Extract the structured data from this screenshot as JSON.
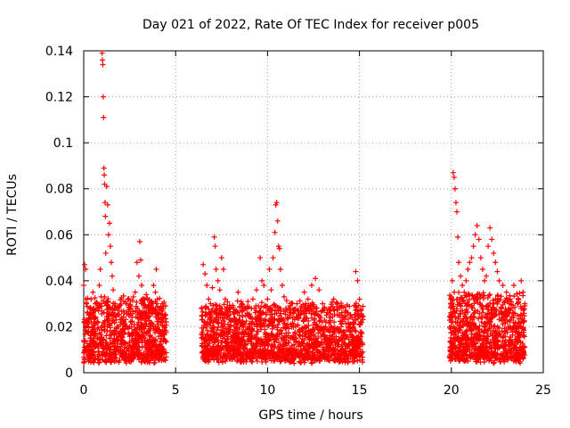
{
  "chart_data": {
    "type": "scatter",
    "title": "Day 021 of 2022, Rate Of TEC Index for receiver p005",
    "xlabel": "GPS time / hours",
    "ylabel": "ROTI / TECUs",
    "xlim": [
      0,
      25
    ],
    "ylim": [
      0,
      0.14
    ],
    "x_ticks": [
      0,
      5,
      10,
      15,
      20,
      25
    ],
    "x_tick_labels": [
      "0",
      "5",
      "10",
      "15",
      "20",
      "25"
    ],
    "y_ticks": [
      0,
      0.02,
      0.04,
      0.06,
      0.08,
      0.1,
      0.12,
      0.14
    ],
    "y_tick_labels": [
      "0",
      "0.02",
      "0.04",
      "0.06",
      "0.08",
      "0.1",
      "0.12",
      "0.14"
    ],
    "grid": true,
    "marker": "+",
    "series": [
      {
        "name": "ROTI",
        "color": "#ff0000",
        "points": [
          [
            0.0,
            0.038
          ],
          [
            0.05,
            0.047
          ],
          [
            0.1,
            0.045
          ],
          [
            0.15,
            0.03
          ],
          [
            0.2,
            0.022
          ],
          [
            0.25,
            0.018
          ],
          [
            0.3,
            0.025
          ],
          [
            0.35,
            0.015
          ],
          [
            0.4,
            0.032
          ],
          [
            0.45,
            0.02
          ],
          [
            0.5,
            0.035
          ],
          [
            0.55,
            0.028
          ],
          [
            0.6,
            0.016
          ],
          [
            0.65,
            0.024
          ],
          [
            0.7,
            0.03
          ],
          [
            0.75,
            0.019
          ],
          [
            0.8,
            0.027
          ],
          [
            0.85,
            0.038
          ],
          [
            0.9,
            0.045
          ],
          [
            0.95,
            0.033
          ],
          [
            1.0,
            0.139
          ],
          [
            1.02,
            0.136
          ],
          [
            1.04,
            0.134
          ],
          [
            1.06,
            0.12
          ],
          [
            1.08,
            0.111
          ],
          [
            1.1,
            0.089
          ],
          [
            1.12,
            0.086
          ],
          [
            1.14,
            0.082
          ],
          [
            1.16,
            0.074
          ],
          [
            1.18,
            0.068
          ],
          [
            1.2,
            0.052
          ],
          [
            1.25,
            0.081
          ],
          [
            1.3,
            0.073
          ],
          [
            1.35,
            0.06
          ],
          [
            1.4,
            0.065
          ],
          [
            1.45,
            0.055
          ],
          [
            1.5,
            0.048
          ],
          [
            1.55,
            0.042
          ],
          [
            1.6,
            0.036
          ],
          [
            1.7,
            0.03
          ],
          [
            1.8,
            0.025
          ],
          [
            1.9,
            0.02
          ],
          [
            2.0,
            0.022
          ],
          [
            2.1,
            0.018
          ],
          [
            2.2,
            0.026
          ],
          [
            2.3,
            0.03
          ],
          [
            2.4,
            0.032
          ],
          [
            2.5,
            0.028
          ],
          [
            2.6,
            0.02
          ],
          [
            2.7,
            0.033
          ],
          [
            2.8,
            0.035
          ],
          [
            2.9,
            0.048
          ],
          [
            3.0,
            0.042
          ],
          [
            3.05,
            0.057
          ],
          [
            3.1,
            0.049
          ],
          [
            3.15,
            0.038
          ],
          [
            3.2,
            0.03
          ],
          [
            3.3,
            0.025
          ],
          [
            3.4,
            0.034
          ],
          [
            3.5,
            0.028
          ],
          [
            3.6,
            0.02
          ],
          [
            3.7,
            0.031
          ],
          [
            3.8,
            0.038
          ],
          [
            3.9,
            0.035
          ],
          [
            3.95,
            0.045
          ],
          [
            4.0,
            0.032
          ],
          [
            4.1,
            0.028
          ],
          [
            4.2,
            0.022
          ],
          [
            4.3,
            0.018
          ],
          [
            4.4,
            0.025
          ],
          [
            6.5,
            0.047
          ],
          [
            6.6,
            0.043
          ],
          [
            6.7,
            0.038
          ],
          [
            6.8,
            0.032
          ],
          [
            6.9,
            0.03
          ],
          [
            7.0,
            0.037
          ],
          [
            7.1,
            0.059
          ],
          [
            7.15,
            0.055
          ],
          [
            7.2,
            0.045
          ],
          [
            7.3,
            0.04
          ],
          [
            7.4,
            0.036
          ],
          [
            7.5,
            0.05
          ],
          [
            7.6,
            0.045
          ],
          [
            7.7,
            0.032
          ],
          [
            7.8,
            0.028
          ],
          [
            7.9,
            0.025
          ],
          [
            8.0,
            0.022
          ],
          [
            8.2,
            0.026
          ],
          [
            8.4,
            0.035
          ],
          [
            8.6,
            0.03
          ],
          [
            8.8,
            0.025
          ],
          [
            9.0,
            0.02
          ],
          [
            9.2,
            0.032
          ],
          [
            9.4,
            0.036
          ],
          [
            9.5,
            0.029
          ],
          [
            9.6,
            0.05
          ],
          [
            9.7,
            0.04
          ],
          [
            9.8,
            0.038
          ],
          [
            10.0,
            0.032
          ],
          [
            10.1,
            0.045
          ],
          [
            10.2,
            0.036
          ],
          [
            10.3,
            0.05
          ],
          [
            10.4,
            0.061
          ],
          [
            10.45,
            0.073
          ],
          [
            10.5,
            0.074
          ],
          [
            10.55,
            0.066
          ],
          [
            10.6,
            0.055
          ],
          [
            10.65,
            0.054
          ],
          [
            10.7,
            0.045
          ],
          [
            10.8,
            0.038
          ],
          [
            10.9,
            0.033
          ],
          [
            11.0,
            0.028
          ],
          [
            11.2,
            0.025
          ],
          [
            11.4,
            0.021
          ],
          [
            11.6,
            0.03
          ],
          [
            11.8,
            0.028
          ],
          [
            12.0,
            0.035
          ],
          [
            12.2,
            0.032
          ],
          [
            12.4,
            0.038
          ],
          [
            12.6,
            0.041
          ],
          [
            12.8,
            0.036
          ],
          [
            13.0,
            0.03
          ],
          [
            13.2,
            0.025
          ],
          [
            13.4,
            0.022
          ],
          [
            13.6,
            0.032
          ],
          [
            13.8,
            0.025
          ],
          [
            14.0,
            0.02
          ],
          [
            14.2,
            0.015
          ],
          [
            14.4,
            0.02
          ],
          [
            14.6,
            0.024
          ],
          [
            14.8,
            0.044
          ],
          [
            14.9,
            0.04
          ],
          [
            15.0,
            0.032
          ],
          [
            15.1,
            0.025
          ],
          [
            20.0,
            0.033
          ],
          [
            20.05,
            0.04
          ],
          [
            20.1,
            0.087
          ],
          [
            20.15,
            0.085
          ],
          [
            20.2,
            0.08
          ],
          [
            20.25,
            0.074
          ],
          [
            20.3,
            0.07
          ],
          [
            20.35,
            0.059
          ],
          [
            20.4,
            0.048
          ],
          [
            20.5,
            0.042
          ],
          [
            20.6,
            0.038
          ],
          [
            20.7,
            0.035
          ],
          [
            20.8,
            0.04
          ],
          [
            20.9,
            0.045
          ],
          [
            21.0,
            0.048
          ],
          [
            21.1,
            0.05
          ],
          [
            21.2,
            0.055
          ],
          [
            21.3,
            0.06
          ],
          [
            21.4,
            0.064
          ],
          [
            21.5,
            0.058
          ],
          [
            21.6,
            0.05
          ],
          [
            21.7,
            0.045
          ],
          [
            21.8,
            0.04
          ],
          [
            21.9,
            0.042
          ],
          [
            22.0,
            0.055
          ],
          [
            22.1,
            0.063
          ],
          [
            22.2,
            0.058
          ],
          [
            22.3,
            0.052
          ],
          [
            22.4,
            0.048
          ],
          [
            22.5,
            0.044
          ],
          [
            22.6,
            0.04
          ],
          [
            22.8,
            0.038
          ],
          [
            23.0,
            0.035
          ],
          [
            23.2,
            0.032
          ],
          [
            23.4,
            0.038
          ],
          [
            23.6,
            0.03
          ],
          [
            23.8,
            0.04
          ],
          [
            23.9,
            0.035
          ],
          [
            24.0,
            0.03
          ]
        ],
        "bands": [
          {
            "x_start": 0.0,
            "x_end": 4.5,
            "y_low": 0.004,
            "y_high": 0.03,
            "count": 900
          },
          {
            "x_start": 6.4,
            "x_end": 15.2,
            "y_low": 0.004,
            "y_high": 0.028,
            "count": 1700
          },
          {
            "x_start": 19.9,
            "x_end": 24.0,
            "y_low": 0.004,
            "y_high": 0.032,
            "count": 900
          }
        ]
      }
    ]
  }
}
